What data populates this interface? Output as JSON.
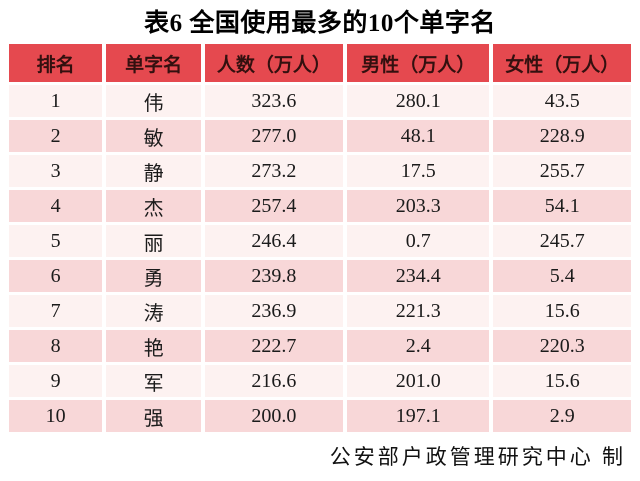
{
  "chart_data": {
    "type": "table",
    "title": "表6 全国使用最多的10个单字名",
    "columns": [
      "排名",
      "单字名",
      "人数（万人）",
      "男性（万人）",
      "女性（万人）"
    ],
    "rows": [
      [
        "1",
        "伟",
        "323.6",
        "280.1",
        "43.5"
      ],
      [
        "2",
        "敏",
        "277.0",
        "48.1",
        "228.9"
      ],
      [
        "3",
        "静",
        "273.2",
        "17.5",
        "255.7"
      ],
      [
        "4",
        "杰",
        "257.4",
        "203.3",
        "54.1"
      ],
      [
        "5",
        "丽",
        "246.4",
        "0.7",
        "245.7"
      ],
      [
        "6",
        "勇",
        "239.8",
        "234.4",
        "5.4"
      ],
      [
        "7",
        "涛",
        "236.9",
        "221.3",
        "15.6"
      ],
      [
        "8",
        "艳",
        "222.7",
        "2.4",
        "220.3"
      ],
      [
        "9",
        "军",
        "216.6",
        "201.0",
        "15.6"
      ],
      [
        "10",
        "强",
        "200.0",
        "197.1",
        "2.9"
      ]
    ],
    "source_note": "公安部户政管理研究中心 制"
  },
  "colors": {
    "header_bg": "#e5494f",
    "header_text": "#33100f",
    "row_odd_bg": "#fdf2f1",
    "row_even_bg": "#f8d7d8",
    "cell_text": "#1b1b1b",
    "page_bg": "#ffffff"
  }
}
